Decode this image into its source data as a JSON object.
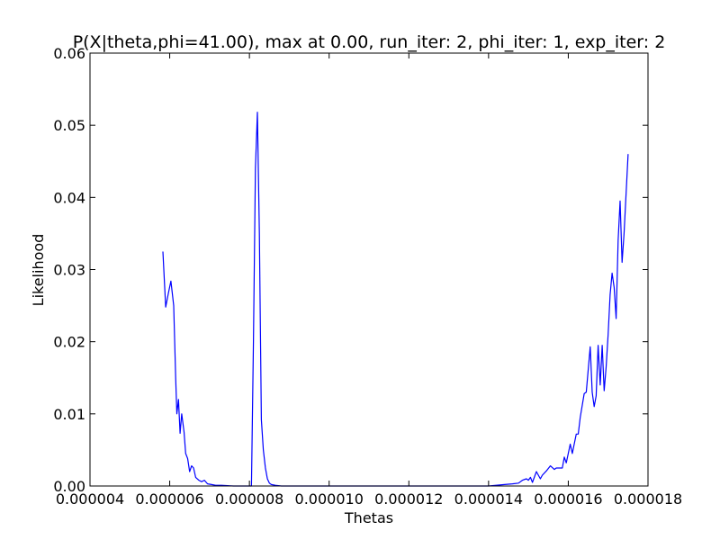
{
  "chart_data": {
    "type": "line",
    "title": "P(X|theta,phi=41.00), max at 0.00, run_iter: 2, phi_iter: 1, exp_iter: 2",
    "xlabel": "Thetas",
    "ylabel": "Likelihood",
    "xlim": [
      4e-06,
      1.8e-05
    ],
    "ylim": [
      0.0,
      0.06
    ],
    "grid": false,
    "legend": "none",
    "line_color": "#0000ff",
    "x_ticks": [
      4e-06,
      6e-06,
      8e-06,
      1e-05,
      1.2e-05,
      1.4e-05,
      1.6e-05,
      1.8e-05
    ],
    "x_tick_labels": [
      "0.000004",
      "0.000006",
      "0.000008",
      "0.000010",
      "0.000012",
      "0.000014",
      "0.000016",
      "0.000018"
    ],
    "y_ticks": [
      0.0,
      0.01,
      0.02,
      0.03,
      0.04,
      0.05,
      0.06
    ],
    "y_tick_labels": [
      "0.00",
      "0.01",
      "0.02",
      "0.03",
      "0.04",
      "0.05",
      "0.06"
    ],
    "series": [
      {
        "x": [
          5.83e-06,
          5.9e-06,
          5.97e-06,
          6.03e-06,
          6.1e-06,
          6.15e-06,
          6.18e-06,
          6.22e-06,
          6.26e-06,
          6.3e-06,
          6.36e-06,
          6.4e-06,
          6.45e-06,
          6.5e-06,
          6.55e-06,
          6.6e-06,
          6.65e-06,
          6.73e-06,
          6.8e-06,
          6.87e-06,
          6.95e-06,
          7.05e-06,
          7.15e-06,
          7.3e-06,
          7.6e-06,
          7.9e-06,
          8.05e-06,
          8.1e-06,
          8.15e-06,
          8.2e-06,
          8.25e-06,
          8.3e-06,
          8.35e-06,
          8.4e-06,
          8.45e-06,
          8.5e-06,
          8.55e-06,
          8.65e-06,
          8.8e-06,
          9.5e-06,
          1.2e-05,
          1.4e-05,
          1.44e-05,
          1.46e-05,
          1.475e-05,
          1.485e-05,
          1.495e-05,
          1.5e-05,
          1.505e-05,
          1.51e-05,
          1.52e-05,
          1.53e-05,
          1.535e-05,
          1.545e-05,
          1.555e-05,
          1.565e-05,
          1.57e-05,
          1.575e-05,
          1.585e-05,
          1.59e-05,
          1.595e-05,
          1.605e-05,
          1.61e-05,
          1.62e-05,
          1.625e-05,
          1.63e-05,
          1.64e-05,
          1.645e-05,
          1.655e-05,
          1.66e-05,
          1.665e-05,
          1.67e-05,
          1.675e-05,
          1.68e-05,
          1.685e-05,
          1.69e-05,
          1.695e-05,
          1.7e-05,
          1.705e-05,
          1.71e-05,
          1.715e-05,
          1.72e-05,
          1.725e-05,
          1.73e-05,
          1.735e-05,
          1.74e-05,
          1.75e-05
        ],
        "values": [
          0.0325,
          0.0248,
          0.0268,
          0.0284,
          0.025,
          0.015,
          0.01,
          0.012,
          0.0073,
          0.01,
          0.0075,
          0.0045,
          0.0038,
          0.002,
          0.0028,
          0.0025,
          0.0012,
          0.0008,
          0.0006,
          0.0008,
          0.0003,
          0.0002,
          0.0001,
          0.0001,
          0.0,
          0.0,
          0.0,
          0.02,
          0.044,
          0.0518,
          0.035,
          0.0092,
          0.005,
          0.0025,
          0.001,
          0.0004,
          0.0002,
          0.0001,
          0.0,
          0.0,
          0.0,
          0.0,
          0.0002,
          0.0003,
          0.0004,
          0.0008,
          0.001,
          0.0008,
          0.0012,
          0.0005,
          0.002,
          0.001,
          0.0015,
          0.0021,
          0.0028,
          0.0023,
          0.0025,
          0.0025,
          0.0025,
          0.004,
          0.0032,
          0.0058,
          0.0045,
          0.0072,
          0.0072,
          0.0095,
          0.0128,
          0.013,
          0.0193,
          0.013,
          0.011,
          0.0125,
          0.0195,
          0.014,
          0.0195,
          0.0132,
          0.0165,
          0.021,
          0.0265,
          0.0295,
          0.0275,
          0.0232,
          0.034,
          0.0395,
          0.031,
          0.035,
          0.046
        ]
      }
    ]
  }
}
